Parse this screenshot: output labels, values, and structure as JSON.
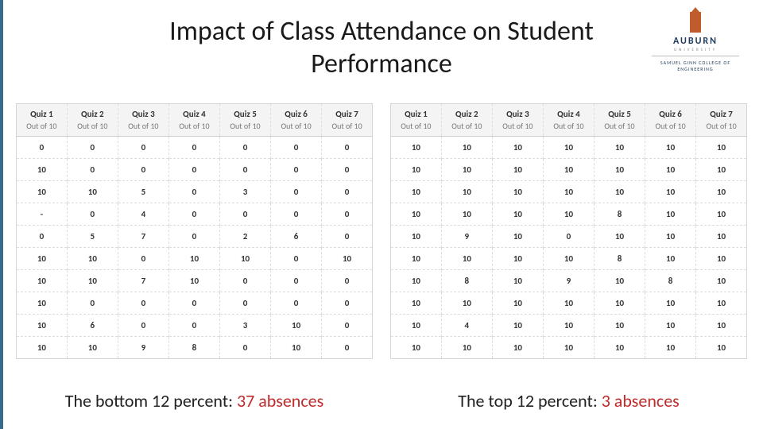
{
  "title": "Impact of Class Attendance on Student Performance",
  "logo": {
    "university": "AUBURN",
    "subtitle1": "UNIVERSITY",
    "subtitle2": "SAMUEL GINN COLLEGE OF ENGINEERING"
  },
  "colors": {
    "accent_bar": "#3a6a8a",
    "highlight_text": "#bf2c2c",
    "header_bg": "#f4f4f4",
    "border": "#d6d6d6",
    "dashed_border": "#dddddd",
    "text": "#333333",
    "muted": "#777777"
  },
  "quiz_headers": [
    {
      "label": "Quiz 1",
      "sub": "Out of 10"
    },
    {
      "label": "Quiz 2",
      "sub": "Out of 10"
    },
    {
      "label": "Quiz 3",
      "sub": "Out of 10"
    },
    {
      "label": "Quiz 4",
      "sub": "Out of 10"
    },
    {
      "label": "Quiz 5",
      "sub": "Out of 10"
    },
    {
      "label": "Quiz 6",
      "sub": "Out of 10"
    },
    {
      "label": "Quiz 7",
      "sub": "Out of 10"
    }
  ],
  "left_table": {
    "rows": [
      [
        0,
        0,
        0,
        0,
        0,
        0,
        0
      ],
      [
        10,
        0,
        0,
        0,
        0,
        0,
        0
      ],
      [
        10,
        10,
        5,
        0,
        3,
        0,
        0
      ],
      [
        "-",
        0,
        4,
        0,
        0,
        0,
        0
      ],
      [
        0,
        5,
        7,
        0,
        2,
        6,
        0
      ],
      [
        10,
        10,
        0,
        10,
        10,
        0,
        10
      ],
      [
        10,
        10,
        7,
        10,
        0,
        0,
        0
      ],
      [
        10,
        0,
        0,
        0,
        0,
        0,
        0
      ],
      [
        10,
        6,
        0,
        0,
        3,
        10,
        0
      ],
      [
        10,
        10,
        9,
        8,
        0,
        10,
        0
      ]
    ]
  },
  "right_table": {
    "rows": [
      [
        10,
        10,
        10,
        10,
        10,
        10,
        10
      ],
      [
        10,
        10,
        10,
        10,
        10,
        10,
        10
      ],
      [
        10,
        10,
        10,
        10,
        10,
        10,
        10
      ],
      [
        10,
        10,
        10,
        10,
        8,
        10,
        10
      ],
      [
        10,
        9,
        10,
        0,
        10,
        10,
        10
      ],
      [
        10,
        10,
        10,
        10,
        8,
        10,
        10
      ],
      [
        10,
        8,
        10,
        9,
        10,
        8,
        10
      ],
      [
        10,
        10,
        10,
        10,
        10,
        10,
        10
      ],
      [
        10,
        4,
        10,
        10,
        10,
        10,
        10
      ],
      [
        10,
        10,
        10,
        10,
        10,
        10,
        10
      ]
    ]
  },
  "captions": {
    "left_prefix": "The bottom 12 percent: ",
    "left_highlight": "37 absences",
    "right_prefix": "The top 12 percent: ",
    "right_highlight": "3 absences"
  }
}
